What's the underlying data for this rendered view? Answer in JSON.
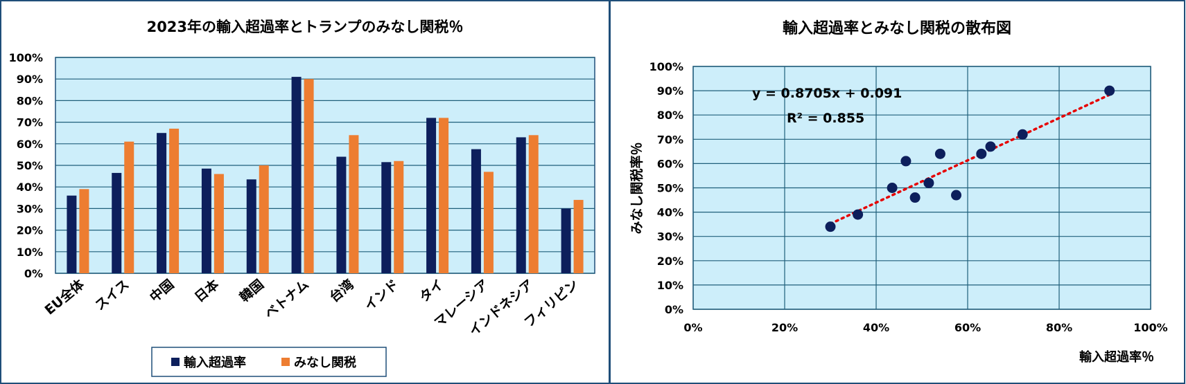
{
  "colors": {
    "plot_bg": "#cdeefa",
    "grid": "#1f5f7a",
    "border": "#1f4e79",
    "import_series": "#0d1f5c",
    "tariff_series": "#ed7d31",
    "trend": "#e60000",
    "scatter_point": "#0d1f5c"
  },
  "chart_data": [
    {
      "type": "bar",
      "title": "2023年の輸入超過率とトランプのみなし関税％",
      "categories": [
        "EU全体",
        "スイス",
        "中国",
        "日本",
        "韓国",
        "ベトナム",
        "台湾",
        "インド",
        "タイ",
        "マレーシア",
        "インドネシア",
        "フィリピン"
      ],
      "series": [
        {
          "name": "輸入超過率",
          "values": [
            0.36,
            0.465,
            0.65,
            0.485,
            0.435,
            0.91,
            0.54,
            0.515,
            0.72,
            0.575,
            0.63,
            0.3
          ]
        },
        {
          "name": "みなし関税",
          "values": [
            0.39,
            0.61,
            0.67,
            0.46,
            0.5,
            0.9,
            0.64,
            0.52,
            0.72,
            0.47,
            0.64,
            0.34
          ]
        }
      ],
      "ylim": [
        0,
        1
      ],
      "yticks": [
        "0%",
        "10%",
        "20%",
        "30%",
        "40%",
        "50%",
        "60%",
        "70%",
        "80%",
        "90%",
        "100%"
      ],
      "legend": "bottom",
      "grid": true
    },
    {
      "type": "scatter",
      "title": "輸入超過率とみなし関税の散布図",
      "xlabel": "輸入超過率％",
      "ylabel": "みなし関税率％",
      "points": [
        {
          "x": 0.36,
          "y": 0.39
        },
        {
          "x": 0.465,
          "y": 0.61
        },
        {
          "x": 0.65,
          "y": 0.67
        },
        {
          "x": 0.485,
          "y": 0.46
        },
        {
          "x": 0.435,
          "y": 0.5
        },
        {
          "x": 0.91,
          "y": 0.9
        },
        {
          "x": 0.54,
          "y": 0.64
        },
        {
          "x": 0.515,
          "y": 0.52
        },
        {
          "x": 0.72,
          "y": 0.72
        },
        {
          "x": 0.575,
          "y": 0.47
        },
        {
          "x": 0.63,
          "y": 0.64
        },
        {
          "x": 0.3,
          "y": 0.34
        }
      ],
      "trendline": {
        "slope": 0.8705,
        "intercept": 0.091,
        "equation": "y = 0.8705x + 0.091",
        "r2_label": "R² = 0.855"
      },
      "xlim": [
        0,
        1
      ],
      "ylim": [
        0,
        1
      ],
      "xticks": [
        "0%",
        "20%",
        "40%",
        "60%",
        "80%",
        "100%"
      ],
      "yticks": [
        "0%",
        "10%",
        "20%",
        "30%",
        "40%",
        "50%",
        "60%",
        "70%",
        "80%",
        "90%",
        "100%"
      ],
      "grid": true
    }
  ]
}
